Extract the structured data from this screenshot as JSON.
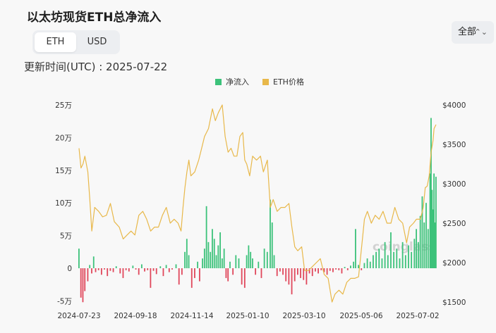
{
  "title": "以太坊现货ETH总净流入",
  "unit_toggle": {
    "options": [
      "ETH",
      "USD"
    ],
    "selected": "ETH"
  },
  "range_select": {
    "value": "全部"
  },
  "updated_label": "更新时间(UTC) : 2025-07-22",
  "watermark": "coinglass",
  "colors": {
    "inflow": "#3cc27a",
    "outflow": "#e0475b",
    "price": "#e8b84a"
  },
  "chart_data": {
    "type": "bar",
    "legend": [
      "净流入",
      "ETH价格"
    ],
    "y_left": {
      "min": -50000,
      "max": 250000,
      "ticks": [
        -50000,
        0,
        50000,
        100000,
        150000,
        200000,
        250000
      ],
      "tick_labels": [
        "-5万",
        "0",
        "5万",
        "10万",
        "15万",
        "20万",
        "25万"
      ]
    },
    "y_right": {
      "min": 1500,
      "max": 4000,
      "ticks": [
        1500,
        2000,
        2500,
        3000,
        3500,
        4000
      ],
      "tick_labels": [
        "$1500",
        "$2000",
        "$2500",
        "$3000",
        "$3500",
        "$4000"
      ]
    },
    "x_ticks": [
      "2024-07-23",
      "2024-09-18",
      "2024-11-14",
      "2025-01-10",
      "2025-03-10",
      "2025-05-06",
      "2025-07-02"
    ],
    "x_start": "2024-07-23",
    "x_end": "2025-07-22",
    "net_flow_series": {
      "name": "净流入",
      "points": [
        [
          "2024-07-23",
          30000
        ],
        [
          "2024-07-25",
          -45000
        ],
        [
          "2024-07-27",
          -52000
        ],
        [
          "2024-07-29",
          -35000
        ],
        [
          "2024-08-01",
          -20000
        ],
        [
          "2024-08-03",
          5000
        ],
        [
          "2024-08-05",
          -8000
        ],
        [
          "2024-08-07",
          18000
        ],
        [
          "2024-08-09",
          -6000
        ],
        [
          "2024-08-12",
          -3000
        ],
        [
          "2024-08-15",
          -10000
        ],
        [
          "2024-08-18",
          -2000
        ],
        [
          "2024-08-21",
          -12000
        ],
        [
          "2024-08-24",
          -4000
        ],
        [
          "2024-08-27",
          -6000
        ],
        [
          "2024-08-30",
          3000
        ],
        [
          "2024-09-03",
          -8000
        ],
        [
          "2024-09-06",
          -15000
        ],
        [
          "2024-09-09",
          -3000
        ],
        [
          "2024-09-12",
          -5000
        ],
        [
          "2024-09-16",
          4000
        ],
        [
          "2024-09-19",
          -2000
        ],
        [
          "2024-09-22",
          -10000
        ],
        [
          "2024-09-25",
          6000
        ],
        [
          "2024-09-28",
          -5000
        ],
        [
          "2024-10-01",
          -3000
        ],
        [
          "2024-10-04",
          -30000
        ],
        [
          "2024-10-07",
          -4000
        ],
        [
          "2024-10-10",
          -9000
        ],
        [
          "2024-10-14",
          3000
        ],
        [
          "2024-10-17",
          -12000
        ],
        [
          "2024-10-20",
          5000
        ],
        [
          "2024-10-23",
          -6000
        ],
        [
          "2024-10-26",
          -2000
        ],
        [
          "2024-10-30",
          6000
        ],
        [
          "2024-11-02",
          -25000
        ],
        [
          "2024-11-05",
          -10000
        ],
        [
          "2024-11-08",
          25000
        ],
        [
          "2024-11-10",
          45000
        ],
        [
          "2024-11-12",
          20000
        ],
        [
          "2024-11-15",
          -30000
        ],
        [
          "2024-11-18",
          -15000
        ],
        [
          "2024-11-21",
          10000
        ],
        [
          "2024-11-23",
          -20000
        ],
        [
          "2024-11-26",
          15000
        ],
        [
          "2024-11-28",
          30000
        ],
        [
          "2024-11-30",
          95000
        ],
        [
          "2024-12-02",
          40000
        ],
        [
          "2024-12-04",
          25000
        ],
        [
          "2024-12-06",
          60000
        ],
        [
          "2024-12-08",
          45000
        ],
        [
          "2024-12-10",
          20000
        ],
        [
          "2024-12-12",
          35000
        ],
        [
          "2024-12-14",
          55000
        ],
        [
          "2024-12-16",
          15000
        ],
        [
          "2024-12-18",
          30000
        ],
        [
          "2024-12-20",
          -15000
        ],
        [
          "2024-12-22",
          -20000
        ],
        [
          "2024-12-24",
          10000
        ],
        [
          "2024-12-27",
          -10000
        ],
        [
          "2024-12-30",
          20000
        ],
        [
          "2025-01-02",
          15000
        ],
        [
          "2025-01-05",
          -25000
        ],
        [
          "2025-01-08",
          -30000
        ],
        [
          "2025-01-10",
          20000
        ],
        [
          "2025-01-12",
          35000
        ],
        [
          "2025-01-14",
          25000
        ],
        [
          "2025-01-16",
          15000
        ],
        [
          "2025-01-19",
          -10000
        ],
        [
          "2025-01-22",
          10000
        ],
        [
          "2025-01-25",
          -15000
        ],
        [
          "2025-01-28",
          30000
        ],
        [
          "2025-01-31",
          25000
        ],
        [
          "2025-02-03",
          105000
        ],
        [
          "2025-02-05",
          70000
        ],
        [
          "2025-02-07",
          20000
        ],
        [
          "2025-02-10",
          -12000
        ],
        [
          "2025-02-13",
          -5000
        ],
        [
          "2025-02-16",
          -10000
        ],
        [
          "2025-02-19",
          -20000
        ],
        [
          "2025-02-22",
          -25000
        ],
        [
          "2025-02-25",
          -40000
        ],
        [
          "2025-02-28",
          -20000
        ],
        [
          "2025-03-03",
          -10000
        ],
        [
          "2025-03-06",
          -15000
        ],
        [
          "2025-03-09",
          -18000
        ],
        [
          "2025-03-12",
          -25000
        ],
        [
          "2025-03-15",
          -8000
        ],
        [
          "2025-03-18",
          -12000
        ],
        [
          "2025-03-21",
          -5000
        ],
        [
          "2025-03-24",
          -8000
        ],
        [
          "2025-03-27",
          -3000
        ],
        [
          "2025-03-30",
          -6000
        ],
        [
          "2025-04-02",
          -10000
        ],
        [
          "2025-04-05",
          -4000
        ],
        [
          "2025-04-08",
          -6000
        ],
        [
          "2025-04-11",
          -2000
        ],
        [
          "2025-04-14",
          -3000
        ],
        [
          "2025-04-17",
          -8000
        ],
        [
          "2025-04-20",
          2000
        ],
        [
          "2025-04-23",
          -3000
        ],
        [
          "2025-04-26",
          4000
        ],
        [
          "2025-04-29",
          10000
        ],
        [
          "2025-05-01",
          60000
        ],
        [
          "2025-05-04",
          5000
        ],
        [
          "2025-05-07",
          -3000
        ],
        [
          "2025-05-10",
          8000
        ],
        [
          "2025-05-13",
          15000
        ],
        [
          "2025-05-16",
          10000
        ],
        [
          "2025-05-19",
          20000
        ],
        [
          "2025-05-22",
          25000
        ],
        [
          "2025-05-25",
          30000
        ],
        [
          "2025-05-28",
          15000
        ],
        [
          "2025-05-31",
          40000
        ],
        [
          "2025-06-03",
          20000
        ],
        [
          "2025-06-06",
          55000
        ],
        [
          "2025-06-09",
          25000
        ],
        [
          "2025-06-12",
          30000
        ],
        [
          "2025-06-15",
          15000
        ],
        [
          "2025-06-18",
          40000
        ],
        [
          "2025-06-21",
          20000
        ],
        [
          "2025-06-24",
          35000
        ],
        [
          "2025-06-27",
          25000
        ],
        [
          "2025-06-30",
          45000
        ],
        [
          "2025-07-02",
          60000
        ],
        [
          "2025-07-04",
          40000
        ],
        [
          "2025-07-06",
          80000
        ],
        [
          "2025-07-08",
          110000
        ],
        [
          "2025-07-10",
          70000
        ],
        [
          "2025-07-12",
          100000
        ],
        [
          "2025-07-14",
          60000
        ],
        [
          "2025-07-16",
          145000
        ],
        [
          "2025-07-17",
          230000
        ],
        [
          "2025-07-18",
          120000
        ],
        [
          "2025-07-19",
          90000
        ],
        [
          "2025-07-20",
          145000
        ],
        [
          "2025-07-21",
          70000
        ],
        [
          "2025-07-22",
          140000
        ]
      ]
    },
    "price_series": {
      "name": "ETH价格",
      "points": [
        [
          "2024-07-23",
          3450
        ],
        [
          "2024-07-25",
          3200
        ],
        [
          "2024-07-27",
          3250
        ],
        [
          "2024-07-29",
          3350
        ],
        [
          "2024-08-01",
          3150
        ],
        [
          "2024-08-03",
          2800
        ],
        [
          "2024-08-05",
          2400
        ],
        [
          "2024-08-08",
          2700
        ],
        [
          "2024-08-12",
          2650
        ],
        [
          "2024-08-16",
          2580
        ],
        [
          "2024-08-20",
          2600
        ],
        [
          "2024-08-24",
          2750
        ],
        [
          "2024-08-28",
          2520
        ],
        [
          "2024-09-02",
          2450
        ],
        [
          "2024-09-06",
          2300
        ],
        [
          "2024-09-10",
          2350
        ],
        [
          "2024-09-14",
          2400
        ],
        [
          "2024-09-18",
          2350
        ],
        [
          "2024-09-22",
          2600
        ],
        [
          "2024-09-26",
          2650
        ],
        [
          "2024-09-30",
          2550
        ],
        [
          "2024-10-04",
          2400
        ],
        [
          "2024-10-08",
          2450
        ],
        [
          "2024-10-12",
          2450
        ],
        [
          "2024-10-16",
          2600
        ],
        [
          "2024-10-20",
          2700
        ],
        [
          "2024-10-24",
          2500
        ],
        [
          "2024-10-28",
          2550
        ],
        [
          "2024-11-01",
          2500
        ],
        [
          "2024-11-04",
          2400
        ],
        [
          "2024-11-06",
          2700
        ],
        [
          "2024-11-08",
          2950
        ],
        [
          "2024-11-10",
          3150
        ],
        [
          "2024-11-12",
          3300
        ],
        [
          "2024-11-14",
          3100
        ],
        [
          "2024-11-18",
          3150
        ],
        [
          "2024-11-22",
          3300
        ],
        [
          "2024-11-25",
          3450
        ],
        [
          "2024-11-28",
          3600
        ],
        [
          "2024-12-02",
          3700
        ],
        [
          "2024-12-06",
          3950
        ],
        [
          "2024-12-09",
          3800
        ],
        [
          "2024-12-12",
          3900
        ],
        [
          "2024-12-16",
          4000
        ],
        [
          "2024-12-19",
          3600
        ],
        [
          "2024-12-22",
          3400
        ],
        [
          "2024-12-25",
          3450
        ],
        [
          "2024-12-28",
          3350
        ],
        [
          "2024-12-31",
          3350
        ],
        [
          "2025-01-03",
          3600
        ],
        [
          "2025-01-06",
          3650
        ],
        [
          "2025-01-08",
          3300
        ],
        [
          "2025-01-10",
          3250
        ],
        [
          "2025-01-13",
          3100
        ],
        [
          "2025-01-16",
          3350
        ],
        [
          "2025-01-20",
          3300
        ],
        [
          "2025-01-24",
          3350
        ],
        [
          "2025-01-27",
          3150
        ],
        [
          "2025-01-31",
          3300
        ],
        [
          "2025-02-03",
          2700
        ],
        [
          "2025-02-06",
          2800
        ],
        [
          "2025-02-10",
          2650
        ],
        [
          "2025-02-14",
          2700
        ],
        [
          "2025-02-18",
          2700
        ],
        [
          "2025-02-22",
          2750
        ],
        [
          "2025-02-25",
          2450
        ],
        [
          "2025-02-28",
          2200
        ],
        [
          "2025-03-03",
          2150
        ],
        [
          "2025-03-07",
          2200
        ],
        [
          "2025-03-10",
          1900
        ],
        [
          "2025-03-14",
          1900
        ],
        [
          "2025-03-18",
          1950
        ],
        [
          "2025-03-22",
          2000
        ],
        [
          "2025-03-26",
          2050
        ],
        [
          "2025-03-30",
          1850
        ],
        [
          "2025-04-03",
          1800
        ],
        [
          "2025-04-07",
          1500
        ],
        [
          "2025-04-10",
          1600
        ],
        [
          "2025-04-14",
          1650
        ],
        [
          "2025-04-18",
          1600
        ],
        [
          "2025-04-22",
          1750
        ],
        [
          "2025-04-26",
          1800
        ],
        [
          "2025-04-30",
          1800
        ],
        [
          "2025-05-04",
          1820
        ],
        [
          "2025-05-08",
          2300
        ],
        [
          "2025-05-10",
          2550
        ],
        [
          "2025-05-13",
          2650
        ],
        [
          "2025-05-17",
          2500
        ],
        [
          "2025-05-21",
          2600
        ],
        [
          "2025-05-25",
          2550
        ],
        [
          "2025-05-29",
          2650
        ],
        [
          "2025-06-02",
          2500
        ],
        [
          "2025-06-06",
          2500
        ],
        [
          "2025-06-10",
          2700
        ],
        [
          "2025-06-14",
          2550
        ],
        [
          "2025-06-18",
          2500
        ],
        [
          "2025-06-22",
          2250
        ],
        [
          "2025-06-25",
          2450
        ],
        [
          "2025-06-29",
          2500
        ],
        [
          "2025-07-02",
          2550
        ],
        [
          "2025-07-06",
          2550
        ],
        [
          "2025-07-09",
          2700
        ],
        [
          "2025-07-11",
          2950
        ],
        [
          "2025-07-13",
          2970
        ],
        [
          "2025-07-15",
          3100
        ],
        [
          "2025-07-17",
          3400
        ],
        [
          "2025-07-19",
          3550
        ],
        [
          "2025-07-20",
          3700
        ],
        [
          "2025-07-22",
          3750
        ]
      ]
    }
  }
}
